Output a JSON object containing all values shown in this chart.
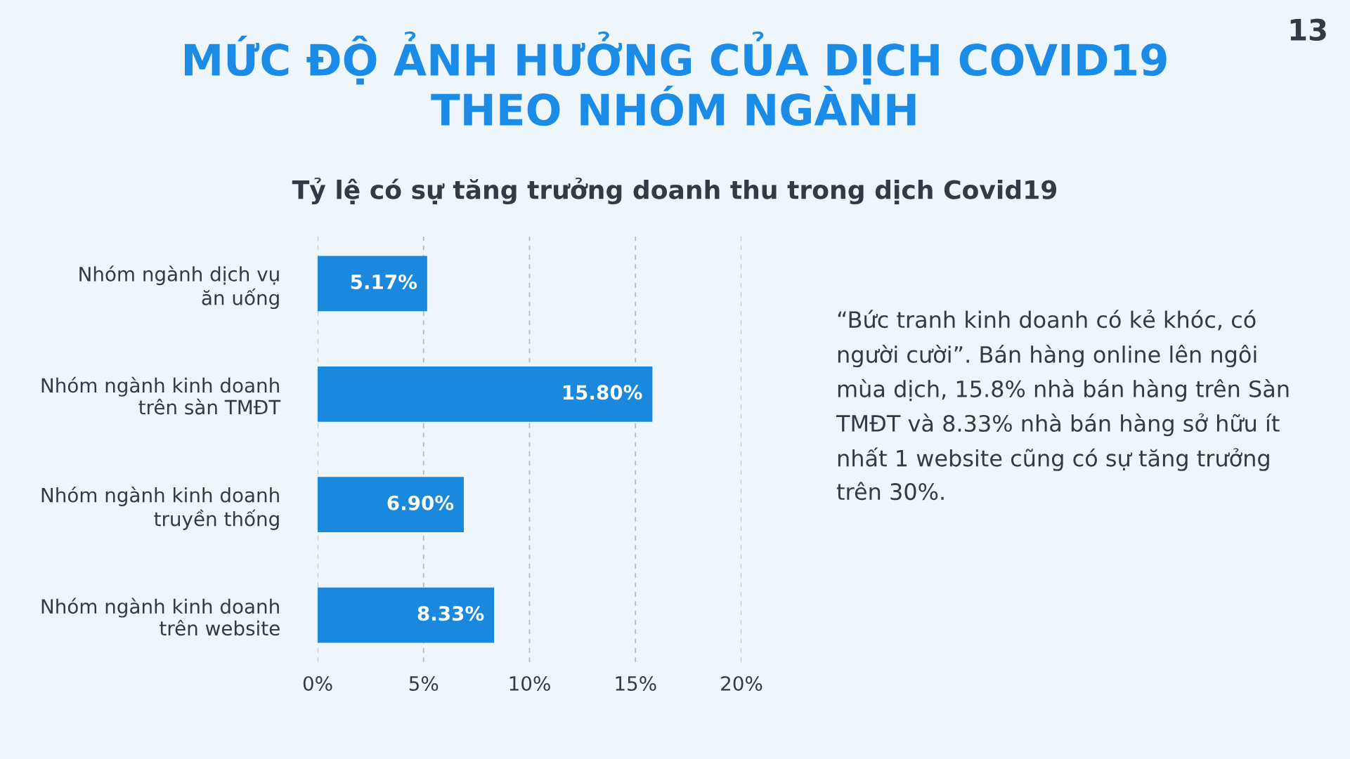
{
  "chart_data": {
    "type": "bar",
    "orientation": "horizontal",
    "title": "MỨC ĐỘ ẢNH HƯỞNG CỦA DỊCH COVID19\nTHEO NHÓM NGÀNH",
    "subtitle": "Tỷ lệ có sự tăng trưởng doanh thu trong dịch Covid19",
    "categories": [
      "Nhóm ngành dịch vụ\năn uống",
      "Nhóm ngành kinh doanh\ntrên sàn TMĐT",
      "Nhóm ngành kinh doanh\ntruyền thống",
      "Nhóm ngành kinh doanh\ntrên website"
    ],
    "values": [
      5.17,
      15.8,
      6.9,
      8.33
    ],
    "value_labels": [
      "5.17%",
      "15.80%",
      "6.90%",
      "8.33%"
    ],
    "color": "#1a88dc",
    "xlim": [
      0,
      20
    ],
    "xticks": [
      {
        "value": 0,
        "label": "0%"
      },
      {
        "value": 5,
        "label": "5%"
      },
      {
        "value": 10,
        "label": "10%"
      },
      {
        "value": 15,
        "label": "15%"
      },
      {
        "value": 20,
        "label": "20%"
      }
    ],
    "grid": "x",
    "annotations": [
      "“Bức tranh kinh doanh có kẻ khóc, có người cười”. Bán hàng online lên ngôi mùa dịch, 15.8% nhà bán hàng trên Sàn TMĐT và 8.33% nhà bán hàng sở hữu ít nhất 1 website cũng có sự tăng trưởng trên 30%.",
      "13"
    ]
  }
}
